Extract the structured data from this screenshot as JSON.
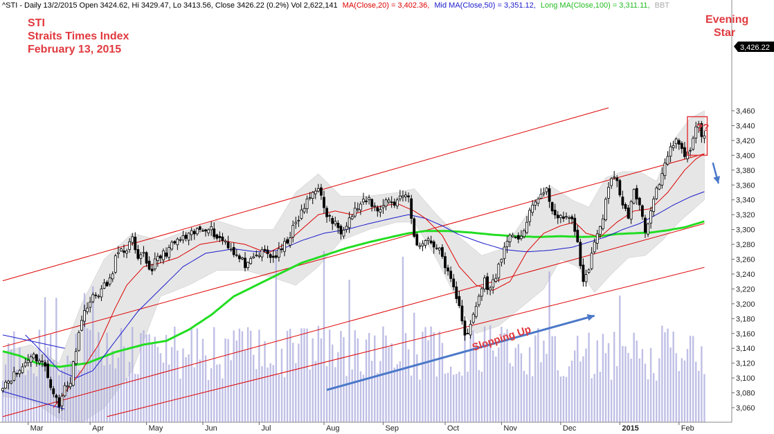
{
  "header": {
    "symbol_line": "^STI - Daily 13/2/2015 Open 3424.62, Hi 3429.47, Lo 3413.56, Close 3426.22 (0.2%) Vol 2,622,141",
    "ma20_label": "MA(Close,20) = 3,402.36,",
    "ma50_label": "Mid MA(Close,50) = 3,351.12,",
    "ma100_label": "Long MA(Close,100) = 3,311.11,",
    "watermark": "BBT"
  },
  "title_block": {
    "line1": "STI",
    "line2": "Straits Times Index",
    "line3": "February 13, 2015"
  },
  "annotations": {
    "evening_star": [
      "Evening",
      "Star"
    ],
    "question": "??",
    "slopping_up": "Slopping Up"
  },
  "price_tag": "3,426.22",
  "colors": {
    "candle": "#000000",
    "ma20": "#dd0000",
    "ma50": "#1a1acc",
    "ma100": "#22dd22",
    "bollinger_fill": "#e6e6e6",
    "channel": "#dd0000",
    "volume": "#aaaadd",
    "blue_arrow": "#4a78c8",
    "annotation_red": "#e0393e"
  },
  "chart_data": {
    "type": "candlestick",
    "y_ticks": [
      3060,
      3080,
      3100,
      3120,
      3140,
      3160,
      3180,
      3200,
      3220,
      3240,
      3260,
      3280,
      3300,
      3320,
      3340,
      3360,
      3380,
      3400,
      3420,
      3440,
      3460
    ],
    "y_tick_labels": [
      "3,060",
      "3,080",
      "3,100",
      "3,120",
      "3,140",
      "3,160",
      "3,180",
      "3,200",
      "3,220",
      "3,240",
      "3,260",
      "3,280",
      "3,300",
      "3,320",
      "3,340",
      "3,360",
      "3,380",
      "3,400",
      "3,420",
      "3,440",
      "3,460"
    ],
    "ylim": [
      3048,
      3466
    ],
    "x_labels": [
      "Mar",
      "Apr",
      "May",
      "Jun",
      "Jul",
      "Aug",
      "Sep",
      "Oct",
      "Nov",
      "Dec",
      "2015",
      "Feb"
    ],
    "x_label_bold": [
      false,
      false,
      false,
      false,
      false,
      false,
      false,
      false,
      false,
      false,
      true,
      false
    ],
    "x_label_bar_index": [
      9,
      31,
      51,
      71,
      91,
      114,
      135,
      157,
      177,
      198,
      219,
      240
    ],
    "bar_count": 250,
    "close_anchors": [
      [
        0,
        3092
      ],
      [
        6,
        3110
      ],
      [
        10,
        3132
      ],
      [
        14,
        3122
      ],
      [
        18,
        3082
      ],
      [
        20,
        3060
      ],
      [
        22,
        3090
      ],
      [
        24,
        3095
      ],
      [
        27,
        3165
      ],
      [
        30,
        3200
      ],
      [
        34,
        3215
      ],
      [
        38,
        3230
      ],
      [
        40,
        3262
      ],
      [
        44,
        3275
      ],
      [
        46,
        3285
      ],
      [
        48,
        3255
      ],
      [
        50,
        3270
      ],
      [
        52,
        3245
      ],
      [
        55,
        3260
      ],
      [
        58,
        3270
      ],
      [
        62,
        3285
      ],
      [
        66,
        3290
      ],
      [
        70,
        3300
      ],
      [
        73,
        3305
      ],
      [
        76,
        3290
      ],
      [
        79,
        3285
      ],
      [
        82,
        3270
      ],
      [
        84,
        3260
      ],
      [
        87,
        3250
      ],
      [
        90,
        3265
      ],
      [
        93,
        3270
      ],
      [
        96,
        3262
      ],
      [
        99,
        3272
      ],
      [
        103,
        3300
      ],
      [
        107,
        3330
      ],
      [
        110,
        3350
      ],
      [
        112,
        3360
      ],
      [
        114,
        3325
      ],
      [
        117,
        3310
      ],
      [
        120,
        3300
      ],
      [
        123,
        3315
      ],
      [
        126,
        3330
      ],
      [
        130,
        3340
      ],
      [
        133,
        3325
      ],
      [
        136,
        3340
      ],
      [
        139,
        3335
      ],
      [
        142,
        3350
      ],
      [
        144,
        3340
      ],
      [
        146,
        3290
      ],
      [
        148,
        3275
      ],
      [
        150,
        3290
      ],
      [
        153,
        3280
      ],
      [
        156,
        3265
      ],
      [
        158,
        3240
      ],
      [
        160,
        3220
      ],
      [
        162,
        3200
      ],
      [
        164,
        3160
      ],
      [
        165,
        3155
      ],
      [
        167,
        3185
      ],
      [
        169,
        3210
      ],
      [
        171,
        3232
      ],
      [
        173,
        3218
      ],
      [
        175,
        3240
      ],
      [
        177,
        3260
      ],
      [
        179,
        3290
      ],
      [
        182,
        3285
      ],
      [
        185,
        3300
      ],
      [
        188,
        3330
      ],
      [
        190,
        3345
      ],
      [
        193,
        3350
      ],
      [
        195,
        3330
      ],
      [
        197,
        3310
      ],
      [
        199,
        3320
      ],
      [
        202,
        3310
      ],
      [
        204,
        3285
      ],
      [
        206,
        3225
      ],
      [
        208,
        3250
      ],
      [
        210,
        3285
      ],
      [
        212,
        3300
      ],
      [
        214,
        3340
      ],
      [
        216,
        3365
      ],
      [
        218,
        3370
      ],
      [
        220,
        3330
      ],
      [
        222,
        3320
      ],
      [
        224,
        3350
      ],
      [
        226,
        3335
      ],
      [
        228,
        3300
      ],
      [
        230,
        3325
      ],
      [
        232,
        3350
      ],
      [
        234,
        3370
      ],
      [
        236,
        3400
      ],
      [
        239,
        3420
      ],
      [
        241,
        3405
      ],
      [
        243,
        3400
      ],
      [
        245,
        3425
      ],
      [
        247,
        3440
      ],
      [
        248,
        3420
      ],
      [
        249,
        3426
      ]
    ],
    "ma20_anchors": [
      [
        18,
        3060
      ],
      [
        24,
        3090
      ],
      [
        28,
        3110
      ],
      [
        34,
        3145
      ],
      [
        40,
        3195
      ],
      [
        44,
        3225
      ],
      [
        50,
        3250
      ],
      [
        56,
        3255
      ],
      [
        62,
        3262
      ],
      [
        70,
        3280
      ],
      [
        78,
        3285
      ],
      [
        86,
        3280
      ],
      [
        94,
        3268
      ],
      [
        100,
        3280
      ],
      [
        106,
        3300
      ],
      [
        112,
        3320
      ],
      [
        118,
        3325
      ],
      [
        124,
        3320
      ],
      [
        132,
        3330
      ],
      [
        140,
        3335
      ],
      [
        146,
        3325
      ],
      [
        150,
        3315
      ],
      [
        156,
        3292
      ],
      [
        162,
        3250
      ],
      [
        168,
        3225
      ],
      [
        174,
        3218
      ],
      [
        180,
        3230
      ],
      [
        186,
        3270
      ],
      [
        192,
        3295
      ],
      [
        198,
        3305
      ],
      [
        203,
        3310
      ],
      [
        207,
        3295
      ],
      [
        212,
        3290
      ],
      [
        218,
        3310
      ],
      [
        224,
        3325
      ],
      [
        230,
        3328
      ],
      [
        236,
        3350
      ],
      [
        242,
        3380
      ],
      [
        246,
        3395
      ],
      [
        249,
        3402
      ]
    ],
    "ma50_anchors": [
      [
        8,
        3158
      ],
      [
        14,
        3135
      ],
      [
        20,
        3110
      ],
      [
        26,
        3100
      ],
      [
        32,
        3110
      ],
      [
        40,
        3150
      ],
      [
        48,
        3190
      ],
      [
        56,
        3220
      ],
      [
        64,
        3250
      ],
      [
        72,
        3268
      ],
      [
        82,
        3274
      ],
      [
        90,
        3270
      ],
      [
        98,
        3272
      ],
      [
        106,
        3285
      ],
      [
        114,
        3295
      ],
      [
        122,
        3300
      ],
      [
        130,
        3308
      ],
      [
        138,
        3315
      ],
      [
        144,
        3320
      ],
      [
        150,
        3315
      ],
      [
        156,
        3305
      ],
      [
        162,
        3293
      ],
      [
        170,
        3282
      ],
      [
        178,
        3273
      ],
      [
        186,
        3270
      ],
      [
        194,
        3272
      ],
      [
        202,
        3276
      ],
      [
        208,
        3283
      ],
      [
        214,
        3290
      ],
      [
        220,
        3300
      ],
      [
        226,
        3308
      ],
      [
        232,
        3320
      ],
      [
        238,
        3333
      ],
      [
        244,
        3344
      ],
      [
        249,
        3351
      ]
    ],
    "ma100_anchors": [
      [
        0,
        3136
      ],
      [
        6,
        3130
      ],
      [
        12,
        3120
      ],
      [
        20,
        3115
      ],
      [
        30,
        3120
      ],
      [
        40,
        3135
      ],
      [
        50,
        3145
      ],
      [
        58,
        3150
      ],
      [
        66,
        3165
      ],
      [
        74,
        3185
      ],
      [
        82,
        3210
      ],
      [
        90,
        3225
      ],
      [
        98,
        3240
      ],
      [
        106,
        3255
      ],
      [
        114,
        3265
      ],
      [
        122,
        3275
      ],
      [
        130,
        3283
      ],
      [
        138,
        3290
      ],
      [
        144,
        3295
      ],
      [
        150,
        3298
      ],
      [
        158,
        3298
      ],
      [
        166,
        3296
      ],
      [
        174,
        3293
      ],
      [
        182,
        3291
      ],
      [
        190,
        3290
      ],
      [
        198,
        3291
      ],
      [
        206,
        3290
      ],
      [
        212,
        3291
      ],
      [
        218,
        3294
      ],
      [
        224,
        3295
      ],
      [
        230,
        3296
      ],
      [
        236,
        3299
      ],
      [
        242,
        3303
      ],
      [
        249,
        3311
      ]
    ],
    "bb_upper_anchors": [
      [
        0,
        3135
      ],
      [
        10,
        3145
      ],
      [
        20,
        3120
      ],
      [
        28,
        3200
      ],
      [
        36,
        3260
      ],
      [
        46,
        3295
      ],
      [
        56,
        3285
      ],
      [
        66,
        3300
      ],
      [
        76,
        3312
      ],
      [
        86,
        3300
      ],
      [
        96,
        3300
      ],
      [
        104,
        3350
      ],
      [
        112,
        3375
      ],
      [
        120,
        3345
      ],
      [
        130,
        3345
      ],
      [
        140,
        3350
      ],
      [
        146,
        3355
      ],
      [
        154,
        3320
      ],
      [
        162,
        3290
      ],
      [
        170,
        3265
      ],
      [
        178,
        3275
      ],
      [
        186,
        3320
      ],
      [
        194,
        3360
      ],
      [
        202,
        3340
      ],
      [
        208,
        3330
      ],
      [
        214,
        3370
      ],
      [
        220,
        3378
      ],
      [
        226,
        3378
      ],
      [
        232,
        3365
      ],
      [
        238,
        3420
      ],
      [
        244,
        3450
      ],
      [
        249,
        3460
      ]
    ],
    "bb_lower_anchors": [
      [
        0,
        3075
      ],
      [
        10,
        3070
      ],
      [
        20,
        3045
      ],
      [
        28,
        3040
      ],
      [
        36,
        3060
      ],
      [
        46,
        3110
      ],
      [
        56,
        3210
      ],
      [
        66,
        3225
      ],
      [
        76,
        3245
      ],
      [
        86,
        3245
      ],
      [
        96,
        3235
      ],
      [
        104,
        3225
      ],
      [
        112,
        3250
      ],
      [
        120,
        3285
      ],
      [
        130,
        3300
      ],
      [
        140,
        3310
      ],
      [
        146,
        3310
      ],
      [
        154,
        3260
      ],
      [
        162,
        3200
      ],
      [
        168,
        3160
      ],
      [
        176,
        3170
      ],
      [
        184,
        3195
      ],
      [
        192,
        3220
      ],
      [
        198,
        3260
      ],
      [
        204,
        3250
      ],
      [
        210,
        3215
      ],
      [
        216,
        3240
      ],
      [
        222,
        3262
      ],
      [
        228,
        3265
      ],
      [
        234,
        3285
      ],
      [
        240,
        3310
      ],
      [
        249,
        3340
      ]
    ],
    "channels": [
      {
        "from": [
          0,
          3231
        ],
        "to": [
          215,
          3464
        ]
      },
      {
        "from": [
          0,
          3142
        ],
        "to": [
          249,
          3402
        ]
      },
      {
        "from": [
          0,
          3048
        ],
        "to": [
          249,
          3308
        ]
      },
      {
        "from": [
          37,
          3048
        ],
        "to": [
          249,
          3249
        ]
      }
    ],
    "left_pattern": {
      "top": {
        "from": [
          0,
          3158
        ],
        "to": [
          22,
          3140
        ]
      },
      "bottom": {
        "from": [
          0,
          3082
        ],
        "to": [
          22,
          3058
        ]
      }
    },
    "evening_star_box": {
      "bar_from": [
        243,
        3452
      ],
      "bar_to": [
        250,
        3400
      ]
    },
    "blue_arrow_long": {
      "from": [
        115,
        3084
      ],
      "to": [
        210,
        3184
      ]
    },
    "blue_arrow_short": {
      "from": [
        252,
        3390
      ],
      "to": [
        254,
        3362
      ]
    },
    "last_close": 3426.22
  }
}
